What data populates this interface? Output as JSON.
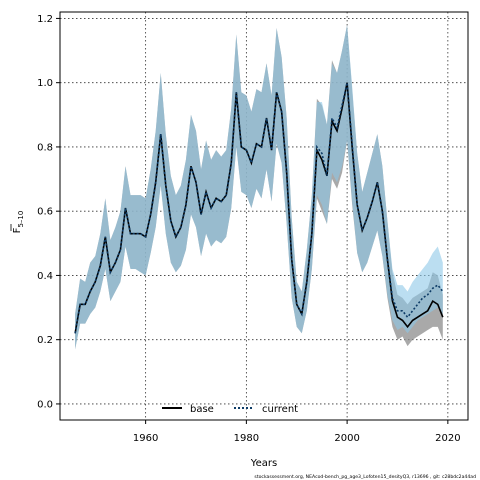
{
  "chart_data": {
    "type": "line",
    "xlabel": "Years",
    "ylabel": "F",
    "ylabel_subscript": "5–10",
    "xlim": [
      1943,
      2024
    ],
    "ylim": [
      -0.05,
      1.22
    ],
    "xticks": [
      1960,
      1980,
      2000,
      2020
    ],
    "yticks": [
      0.0,
      0.2,
      0.4,
      0.6,
      0.8,
      1.0,
      1.2
    ],
    "grid": true,
    "legend": {
      "placement": "bottom-center",
      "entries": [
        "base",
        "current"
      ]
    },
    "footer": "stockassessment.org, NEAcod-bench_pg_age3_Lofoten15_desityQ3, r13696 , git: c28bdc2a44ad",
    "colors": {
      "base": "#000000",
      "current": "#0d3b66",
      "base_band": "#8c8c8c",
      "current_band": "#8ec8e8",
      "overlap_band": "#9bb7c8"
    },
    "x": [
      1946,
      1947,
      1948,
      1949,
      1950,
      1951,
      1952,
      1953,
      1954,
      1955,
      1956,
      1957,
      1958,
      1959,
      1960,
      1961,
      1962,
      1963,
      1964,
      1965,
      1966,
      1967,
      1968,
      1969,
      1970,
      1971,
      1972,
      1973,
      1974,
      1975,
      1976,
      1977,
      1978,
      1979,
      1980,
      1981,
      1982,
      1983,
      1984,
      1985,
      1986,
      1987,
      1988,
      1989,
      1990,
      1991,
      1992,
      1993,
      1994,
      1995,
      1996,
      1997,
      1998,
      1999,
      2000,
      2001,
      2002,
      2003,
      2004,
      2005,
      2006,
      2007,
      2008,
      2009,
      2010,
      2011,
      2012,
      2013,
      2014,
      2015,
      2016,
      2017,
      2018,
      2019
    ],
    "series": [
      {
        "name": "base",
        "values": [
          0.22,
          0.31,
          0.31,
          0.35,
          0.38,
          0.43,
          0.52,
          0.41,
          0.44,
          0.48,
          0.61,
          0.53,
          0.53,
          0.53,
          0.52,
          0.59,
          0.69,
          0.84,
          0.68,
          0.57,
          0.52,
          0.55,
          0.62,
          0.74,
          0.69,
          0.59,
          0.66,
          0.61,
          0.64,
          0.63,
          0.65,
          0.75,
          0.97,
          0.8,
          0.79,
          0.75,
          0.81,
          0.8,
          0.89,
          0.79,
          0.97,
          0.91,
          0.72,
          0.45,
          0.31,
          0.28,
          0.38,
          0.53,
          0.79,
          0.76,
          0.71,
          0.88,
          0.85,
          0.92,
          1.0,
          0.8,
          0.62,
          0.54,
          0.58,
          0.63,
          0.69,
          0.6,
          0.45,
          0.32,
          0.27,
          0.26,
          0.24,
          0.26,
          0.27,
          0.28,
          0.29,
          0.32,
          0.31,
          0.27
        ],
        "lower": [
          0.17,
          0.25,
          0.25,
          0.28,
          0.3,
          0.35,
          0.42,
          0.32,
          0.35,
          0.38,
          0.49,
          0.42,
          0.42,
          0.41,
          0.4,
          0.47,
          0.55,
          0.68,
          0.53,
          0.44,
          0.41,
          0.43,
          0.48,
          0.59,
          0.55,
          0.46,
          0.53,
          0.49,
          0.51,
          0.5,
          0.52,
          0.61,
          0.8,
          0.66,
          0.65,
          0.61,
          0.67,
          0.64,
          0.73,
          0.63,
          0.81,
          0.75,
          0.56,
          0.33,
          0.24,
          0.22,
          0.29,
          0.42,
          0.64,
          0.6,
          0.56,
          0.7,
          0.67,
          0.72,
          0.82,
          0.62,
          0.47,
          0.41,
          0.44,
          0.49,
          0.54,
          0.46,
          0.33,
          0.24,
          0.2,
          0.21,
          0.18,
          0.2,
          0.21,
          0.22,
          0.23,
          0.24,
          0.24,
          0.2
        ],
        "upper": [
          0.28,
          0.39,
          0.38,
          0.44,
          0.46,
          0.53,
          0.64,
          0.51,
          0.55,
          0.6,
          0.74,
          0.65,
          0.65,
          0.65,
          0.64,
          0.73,
          0.85,
          1.03,
          0.84,
          0.71,
          0.65,
          0.68,
          0.76,
          0.9,
          0.85,
          0.73,
          0.82,
          0.76,
          0.79,
          0.77,
          0.79,
          0.92,
          1.15,
          0.97,
          0.96,
          0.91,
          0.98,
          0.97,
          1.06,
          0.96,
          1.17,
          1.08,
          0.89,
          0.58,
          0.38,
          0.35,
          0.48,
          0.65,
          0.95,
          0.93,
          0.87,
          1.07,
          1.03,
          1.1,
          1.18,
          0.98,
          0.78,
          0.66,
          0.72,
          0.78,
          0.84,
          0.74,
          0.57,
          0.41,
          0.34,
          0.33,
          0.31,
          0.33,
          0.34,
          0.35,
          0.36,
          0.41,
          0.4,
          0.34
        ]
      },
      {
        "name": "current",
        "values": [
          0.22,
          0.31,
          0.31,
          0.35,
          0.38,
          0.43,
          0.52,
          0.41,
          0.44,
          0.48,
          0.61,
          0.53,
          0.53,
          0.53,
          0.52,
          0.59,
          0.69,
          0.84,
          0.68,
          0.57,
          0.52,
          0.55,
          0.62,
          0.74,
          0.69,
          0.59,
          0.66,
          0.61,
          0.64,
          0.63,
          0.65,
          0.75,
          0.97,
          0.8,
          0.79,
          0.75,
          0.81,
          0.8,
          0.89,
          0.79,
          0.97,
          0.91,
          0.72,
          0.45,
          0.31,
          0.28,
          0.38,
          0.53,
          0.8,
          0.78,
          0.71,
          0.89,
          0.86,
          0.93,
          1.0,
          0.81,
          0.62,
          0.54,
          0.58,
          0.63,
          0.69,
          0.6,
          0.45,
          0.33,
          0.29,
          0.29,
          0.27,
          0.29,
          0.31,
          0.33,
          0.34,
          0.36,
          0.37,
          0.35
        ],
        "lower": [
          0.17,
          0.25,
          0.25,
          0.28,
          0.3,
          0.35,
          0.42,
          0.32,
          0.35,
          0.38,
          0.49,
          0.42,
          0.42,
          0.41,
          0.4,
          0.47,
          0.55,
          0.68,
          0.53,
          0.44,
          0.41,
          0.43,
          0.48,
          0.59,
          0.55,
          0.46,
          0.53,
          0.49,
          0.51,
          0.5,
          0.52,
          0.61,
          0.8,
          0.66,
          0.65,
          0.61,
          0.67,
          0.64,
          0.73,
          0.63,
          0.81,
          0.75,
          0.56,
          0.33,
          0.24,
          0.22,
          0.29,
          0.42,
          0.65,
          0.62,
          0.56,
          0.72,
          0.69,
          0.74,
          0.82,
          0.63,
          0.47,
          0.41,
          0.44,
          0.49,
          0.54,
          0.46,
          0.34,
          0.26,
          0.23,
          0.24,
          0.22,
          0.24,
          0.26,
          0.27,
          0.28,
          0.29,
          0.3,
          0.28
        ],
        "upper": [
          0.28,
          0.39,
          0.38,
          0.44,
          0.46,
          0.53,
          0.64,
          0.51,
          0.55,
          0.6,
          0.74,
          0.65,
          0.65,
          0.65,
          0.64,
          0.73,
          0.85,
          1.03,
          0.84,
          0.71,
          0.65,
          0.68,
          0.76,
          0.9,
          0.85,
          0.73,
          0.82,
          0.76,
          0.79,
          0.77,
          0.79,
          0.92,
          1.15,
          0.97,
          0.96,
          0.91,
          0.98,
          0.97,
          1.06,
          0.96,
          1.17,
          1.08,
          0.89,
          0.58,
          0.38,
          0.35,
          0.48,
          0.65,
          0.94,
          0.94,
          0.87,
          1.06,
          1.03,
          1.1,
          1.18,
          0.99,
          0.78,
          0.66,
          0.72,
          0.78,
          0.84,
          0.74,
          0.57,
          0.42,
          0.37,
          0.37,
          0.35,
          0.38,
          0.4,
          0.42,
          0.44,
          0.47,
          0.49,
          0.44
        ]
      }
    ]
  }
}
